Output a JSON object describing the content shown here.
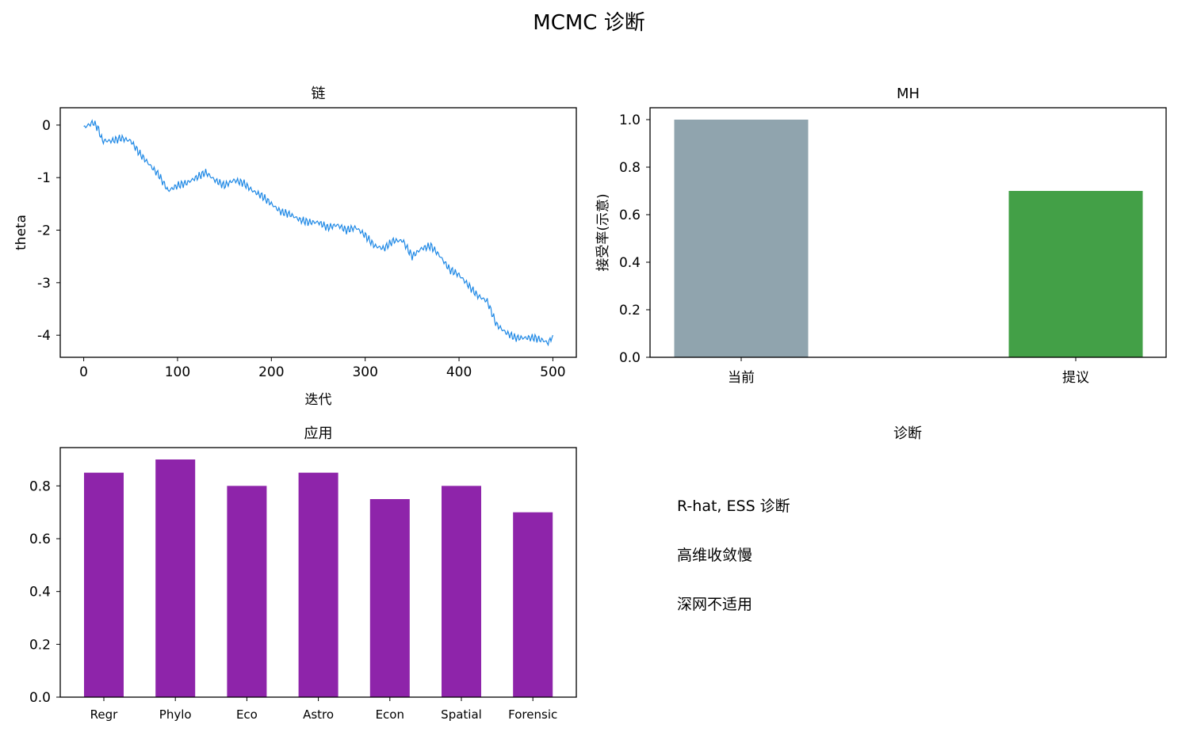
{
  "suptitle": "MCMC 诊断",
  "chart_data": [
    {
      "type": "line",
      "title": "链",
      "xlabel": "迭代",
      "ylabel": "theta",
      "xlim": [
        -25,
        525
      ],
      "ylim": [
        -4.42,
        0.33
      ],
      "xticks": [
        0,
        100,
        200,
        300,
        400,
        500
      ],
      "yticks": [
        0,
        -1,
        -2,
        -3,
        -4
      ],
      "color": "#1e88e5",
      "series": [
        {
          "x": [
            0,
            10,
            15,
            20,
            30,
            40,
            50,
            60,
            70,
            80,
            90,
            100,
            110,
            120,
            130,
            140,
            150,
            160,
            170,
            180,
            190,
            200,
            210,
            220,
            230,
            240,
            250,
            260,
            270,
            280,
            290,
            300,
            310,
            320,
            330,
            340,
            350,
            360,
            370,
            380,
            390,
            400,
            410,
            420,
            430,
            440,
            450,
            460,
            470,
            480,
            490,
            495,
            500
          ],
          "y": [
            -0.05,
            0.05,
            -0.05,
            -0.3,
            -0.3,
            -0.25,
            -0.3,
            -0.55,
            -0.75,
            -0.95,
            -1.25,
            -1.15,
            -1.1,
            -1.0,
            -0.9,
            -1.05,
            -1.15,
            -1.05,
            -1.1,
            -1.25,
            -1.35,
            -1.5,
            -1.65,
            -1.7,
            -1.8,
            -1.85,
            -1.85,
            -1.95,
            -1.9,
            -2.0,
            -1.95,
            -2.1,
            -2.3,
            -2.35,
            -2.2,
            -2.2,
            -2.5,
            -2.35,
            -2.3,
            -2.5,
            -2.75,
            -2.85,
            -3.05,
            -3.25,
            -3.35,
            -3.8,
            -3.95,
            -4.05,
            -4.05,
            -4.05,
            -4.1,
            -4.15,
            -4.0
          ]
        }
      ]
    },
    {
      "type": "bar",
      "title": "MH",
      "ylabel": "接受率(示意)",
      "categories": [
        "当前",
        "提议"
      ],
      "values": [
        1.0,
        0.7
      ],
      "colors": [
        "#90a4ae",
        "#43a047"
      ],
      "ylim": [
        0,
        1.05
      ],
      "yticks": [
        "0.0",
        "0.2",
        "0.4",
        "0.6",
        "0.8",
        "1.0"
      ]
    },
    {
      "type": "bar",
      "title": "应用",
      "categories": [
        "Regr",
        "Phylo",
        "Eco",
        "Astro",
        "Econ",
        "Spatial",
        "Forensic"
      ],
      "values": [
        0.85,
        0.9,
        0.8,
        0.85,
        0.75,
        0.8,
        0.7
      ],
      "color": "#8e24aa",
      "ylim": [
        0,
        0.945
      ],
      "yticks": [
        "0.0",
        "0.2",
        "0.4",
        "0.6",
        "0.8"
      ]
    }
  ],
  "diag": {
    "title": "诊断",
    "lines": [
      "R-hat, ESS 诊断",
      "高维收敛慢",
      "深网不适用"
    ]
  }
}
